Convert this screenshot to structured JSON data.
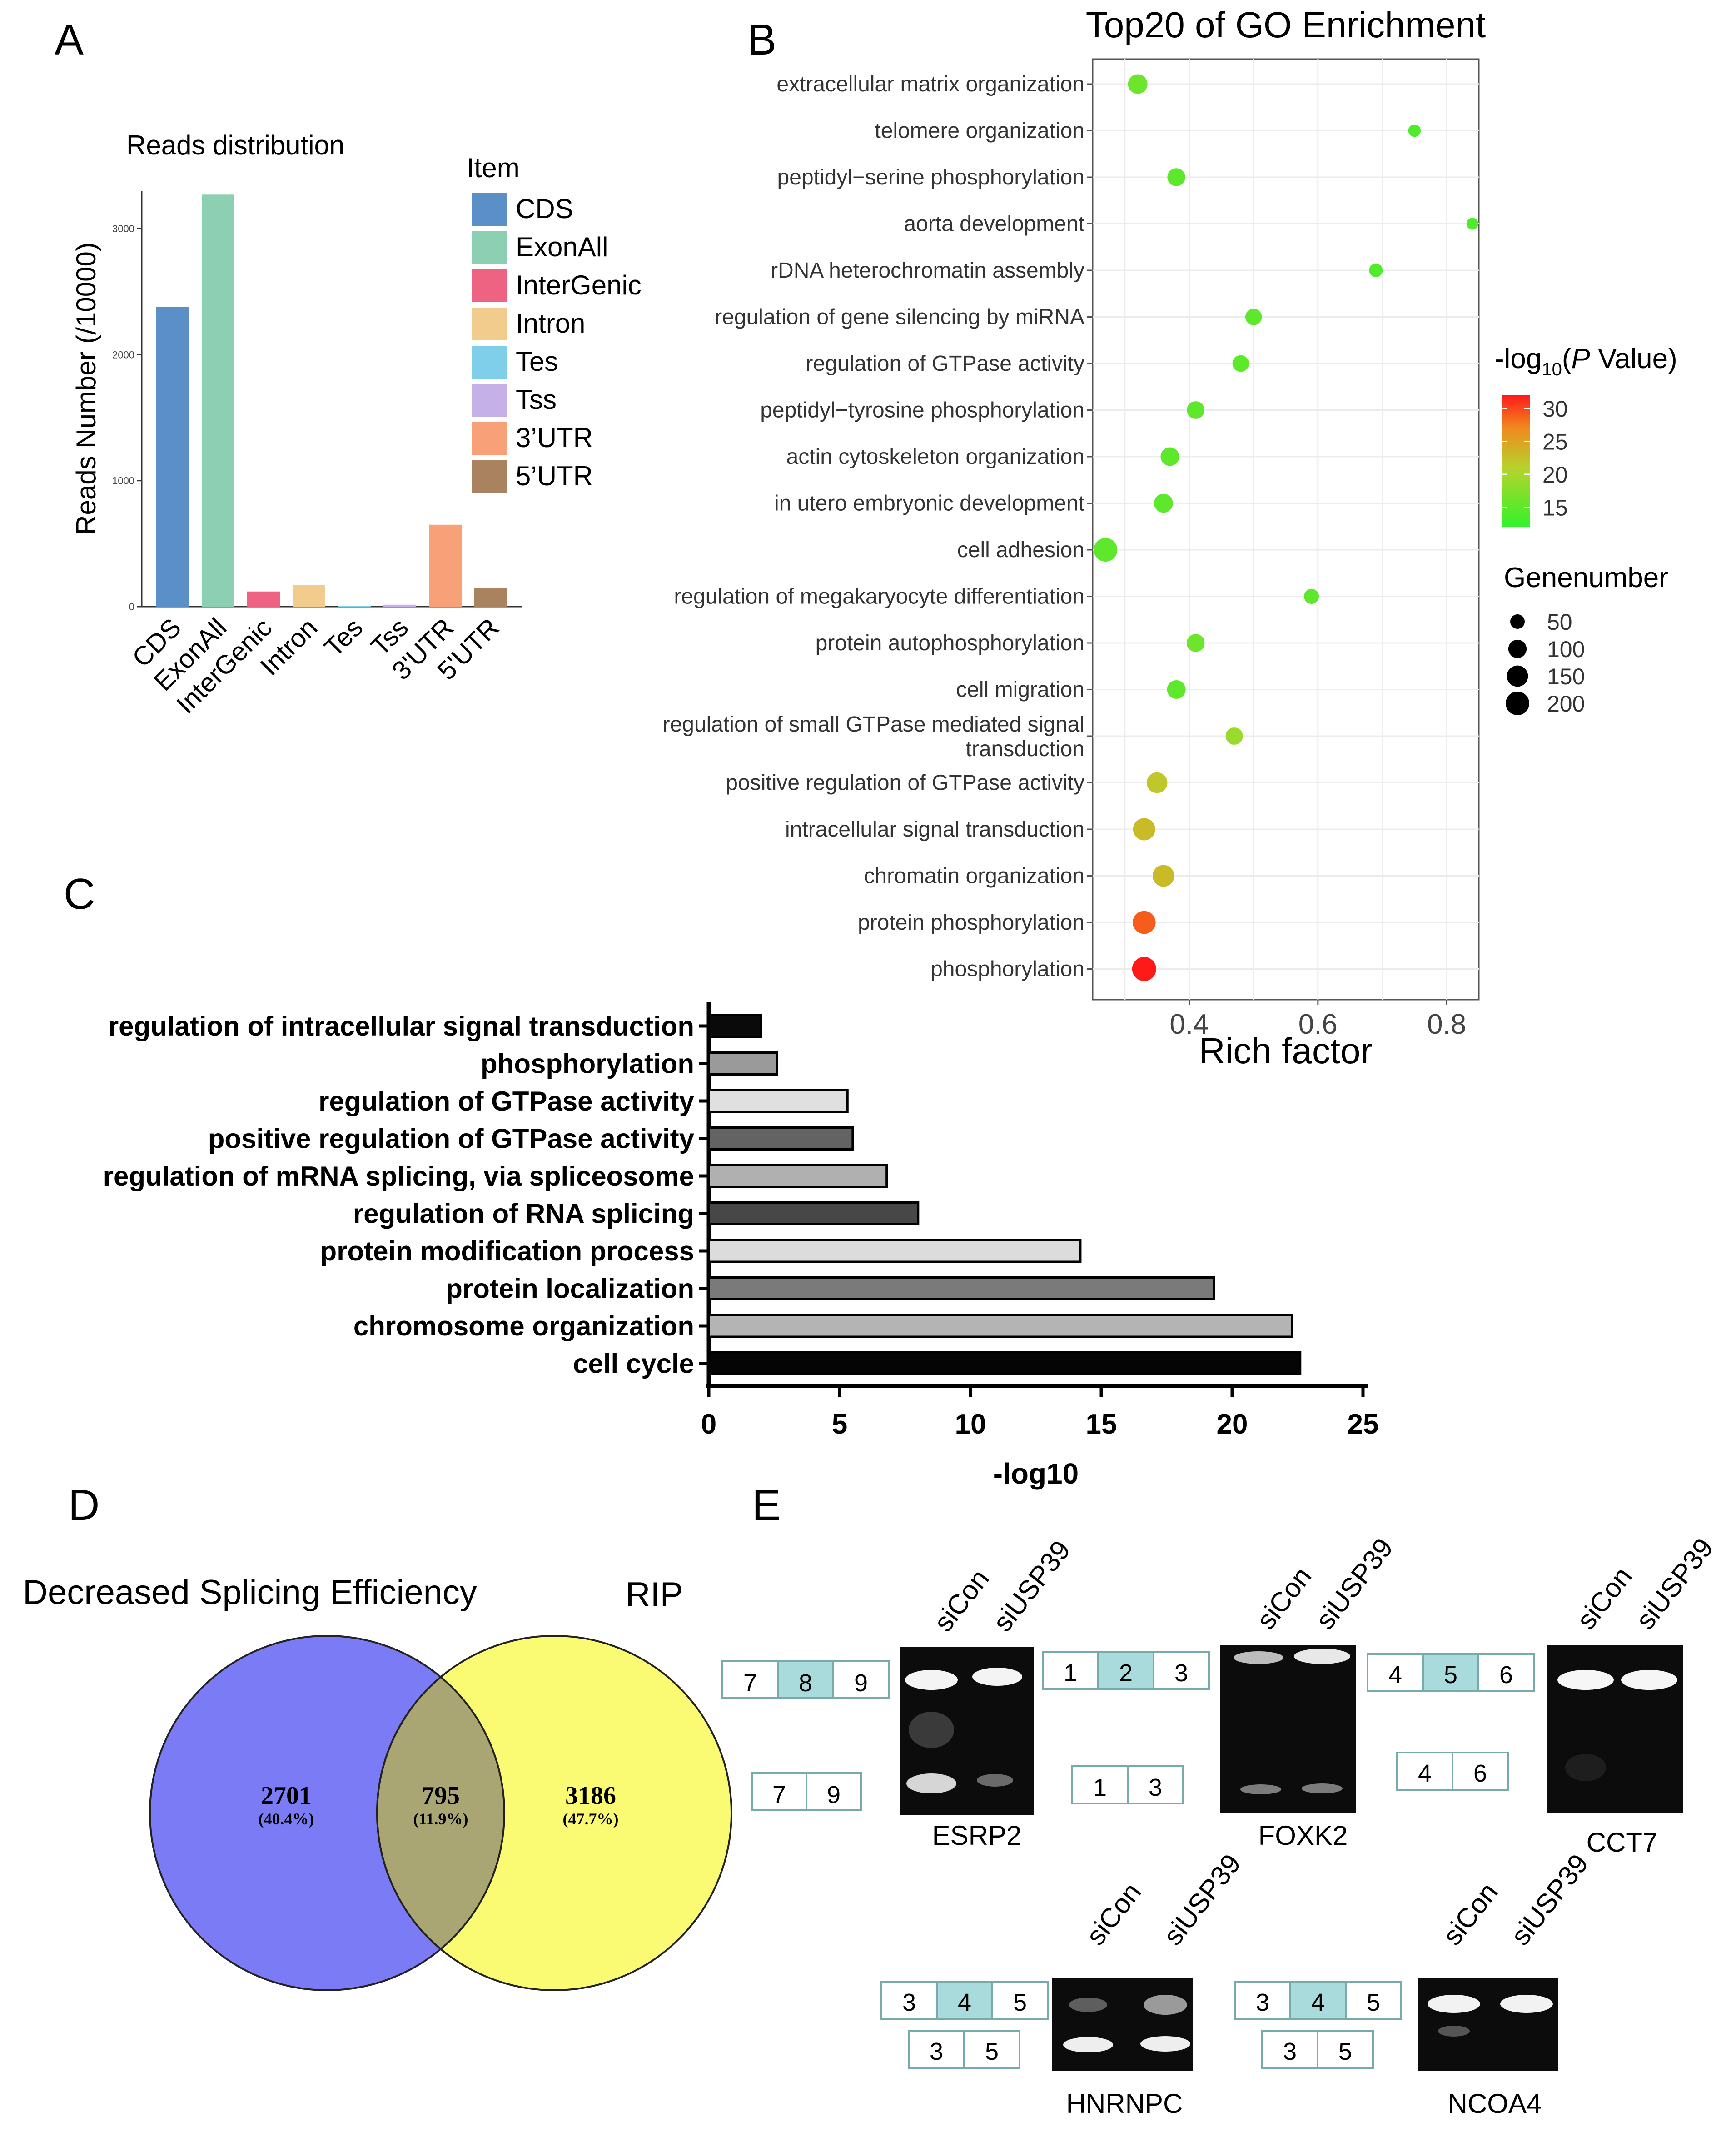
{
  "panels": {
    "A": "A",
    "B": "B",
    "C": "C",
    "D": "D",
    "E": "E"
  },
  "chart_data": [
    {
      "id": "A",
      "type": "bar",
      "title": "Reads distribution",
      "ylabel": "Reads Number (/10000)",
      "xlabel": "",
      "ylim": [
        0,
        3300
      ],
      "yticks": [
        0,
        1000,
        2000,
        3000
      ],
      "legend_title": "Item",
      "legend_position": "right",
      "categories": [
        "CDS",
        "ExonAll",
        "InterGenic",
        "Intron",
        "Tes",
        "Tss",
        "3'UTR",
        "5'UTR"
      ],
      "legend_labels": [
        "CDS",
        "ExonAll",
        "InterGenic",
        "Intron",
        "Tes",
        "Tss",
        "3’UTR",
        "5’UTR"
      ],
      "values": [
        2380,
        3270,
        120,
        170,
        5,
        15,
        650,
        150
      ],
      "colors": [
        "#5b8fc7",
        "#8dcfb3",
        "#ee6382",
        "#f2cc8d",
        "#7fcfea",
        "#c6b0e8",
        "#f8a077",
        "#a98260"
      ]
    },
    {
      "id": "B",
      "type": "scatter",
      "title": "Top20 of GO Enrichment",
      "xlabel": "Rich factor",
      "xlim": [
        0.25,
        0.85
      ],
      "xticks": [
        0.4,
        0.6,
        0.8
      ],
      "xtick_labels": [
        "0.4",
        "0.6",
        "0.8"
      ],
      "color_title": "-log",
      "color_sub": "10",
      "color_title_end": "(",
      "color_title_p": "P",
      "color_title_tail": " Value)",
      "color_range": [
        12,
        32
      ],
      "color_ticks": [
        30,
        25,
        20,
        15
      ],
      "size_title": "Genenumber",
      "size_ticks": [
        50,
        100,
        150,
        200
      ],
      "terms": [
        {
          "line1": "extracellular matrix organization",
          "line2": "",
          "rich": 0.32,
          "logp": 16,
          "n": 120
        },
        {
          "line1": "telomere organization",
          "line2": "",
          "rich": 0.75,
          "logp": 14,
          "n": 30
        },
        {
          "line1": "peptidyl−serine phosphorylation",
          "line2": "",
          "rich": 0.38,
          "logp": 15,
          "n": 95
        },
        {
          "line1": "aorta development",
          "line2": "",
          "rich": 0.84,
          "logp": 14,
          "n": 25
        },
        {
          "line1": "rDNA heterochromatin assembly",
          "line2": "",
          "rich": 0.69,
          "logp": 14,
          "n": 40
        },
        {
          "line1": "regulation of gene silencing by miRNA",
          "line2": "",
          "rich": 0.5,
          "logp": 15,
          "n": 75
        },
        {
          "line1": "regulation of GTPase activity",
          "line2": "",
          "rich": 0.48,
          "logp": 15,
          "n": 75
        },
        {
          "line1": "peptidyl−tyrosine phosphorylation",
          "line2": "",
          "rich": 0.41,
          "logp": 15,
          "n": 90
        },
        {
          "line1": "actin cytoskeleton organization",
          "line2": "",
          "rich": 0.37,
          "logp": 15,
          "n": 105
        },
        {
          "line1": "in utero embryonic development",
          "line2": "",
          "rich": 0.36,
          "logp": 15,
          "n": 110
        },
        {
          "line1": "cell adhesion",
          "line2": "",
          "rich": 0.27,
          "logp": 15,
          "n": 200
        },
        {
          "line1": "regulation of megakaryocyte differentiation",
          "line2": "",
          "rich": 0.59,
          "logp": 15,
          "n": 55
        },
        {
          "line1": "protein autophosphorylation",
          "line2": "",
          "rich": 0.41,
          "logp": 16,
          "n": 95
        },
        {
          "line1": "cell migration",
          "line2": "",
          "rich": 0.38,
          "logp": 15,
          "n": 105
        },
        {
          "line1": "regulation of small GTPase mediated signal",
          "line2": "transduction",
          "rich": 0.47,
          "logp": 19,
          "n": 85
        },
        {
          "line1": "positive regulation of GTPase activity",
          "line2": "",
          "rich": 0.35,
          "logp": 22,
          "n": 140
        },
        {
          "line1": "intracellular signal transduction",
          "line2": "",
          "rich": 0.33,
          "logp": 23,
          "n": 170
        },
        {
          "line1": "chromatin organization",
          "line2": "",
          "rich": 0.36,
          "logp": 23,
          "n": 160
        },
        {
          "line1": "protein phosphorylation",
          "line2": "",
          "rich": 0.33,
          "logp": 29,
          "n": 185
        },
        {
          "line1": "phosphorylation",
          "line2": "",
          "rich": 0.33,
          "logp": 32,
          "n": 210
        }
      ]
    },
    {
      "id": "C",
      "type": "bar",
      "orientation": "horizontal",
      "title": "",
      "xlabel": "-log10",
      "xlim": [
        0,
        25
      ],
      "xticks": [
        0,
        5,
        10,
        15,
        20,
        25
      ],
      "categories": [
        "regulation of intracellular signal transduction",
        "phosphorylation",
        "regulation of GTPase activity",
        "positive regulation of GTPase activity",
        "regulation of mRNA splicing, via spliceosome",
        "regulation of RNA splicing",
        "protein modification process",
        "protein localization",
        "chromosome organization",
        "cell cycle"
      ],
      "values": [
        2.0,
        2.6,
        5.3,
        5.5,
        6.8,
        8.0,
        14.2,
        19.3,
        22.3,
        22.6
      ],
      "colors": [
        "#0a0a0a",
        "#9a9a9a",
        "#e0e0e0",
        "#636363",
        "#b0b0b0",
        "#474747",
        "#dcdcdc",
        "#7a7a7a",
        "#b4b4b4",
        "#050505"
      ]
    }
  ],
  "venn": {
    "left_label": "Decreased Splicing Efficiency",
    "right_label": "RIP",
    "left_count": "2701",
    "left_pct": "(40.4%)",
    "mid_count": "795",
    "mid_pct": "(11.9%)",
    "right_count": "3186",
    "right_pct": "(47.7%)",
    "left_color": "#7b7bf5",
    "right_color": "#fbfb73",
    "mid_color": "#aaa673"
  },
  "gels": {
    "lane1": "siCon",
    "lane2": "siUSP39",
    "esrp2": {
      "name": "ESRP2",
      "top": [
        "7",
        "8",
        "9"
      ],
      "bottom": [
        "7",
        "9"
      ]
    },
    "foxk2": {
      "name": "FOXK2",
      "top": [
        "1",
        "2",
        "3"
      ],
      "bottom": [
        "1",
        "3"
      ]
    },
    "cct7": {
      "name": "CCT7",
      "top": [
        "4",
        "5",
        "6"
      ],
      "bottom": [
        "4",
        "6"
      ]
    },
    "hnrnpc": {
      "name": "HNRNPC",
      "top": [
        "3",
        "4",
        "5"
      ],
      "bottom": [
        "3",
        "5"
      ]
    },
    "ncoa4": {
      "name": "NCOA4",
      "top": [
        "3",
        "4",
        "5"
      ],
      "bottom": [
        "3",
        "5"
      ]
    }
  }
}
